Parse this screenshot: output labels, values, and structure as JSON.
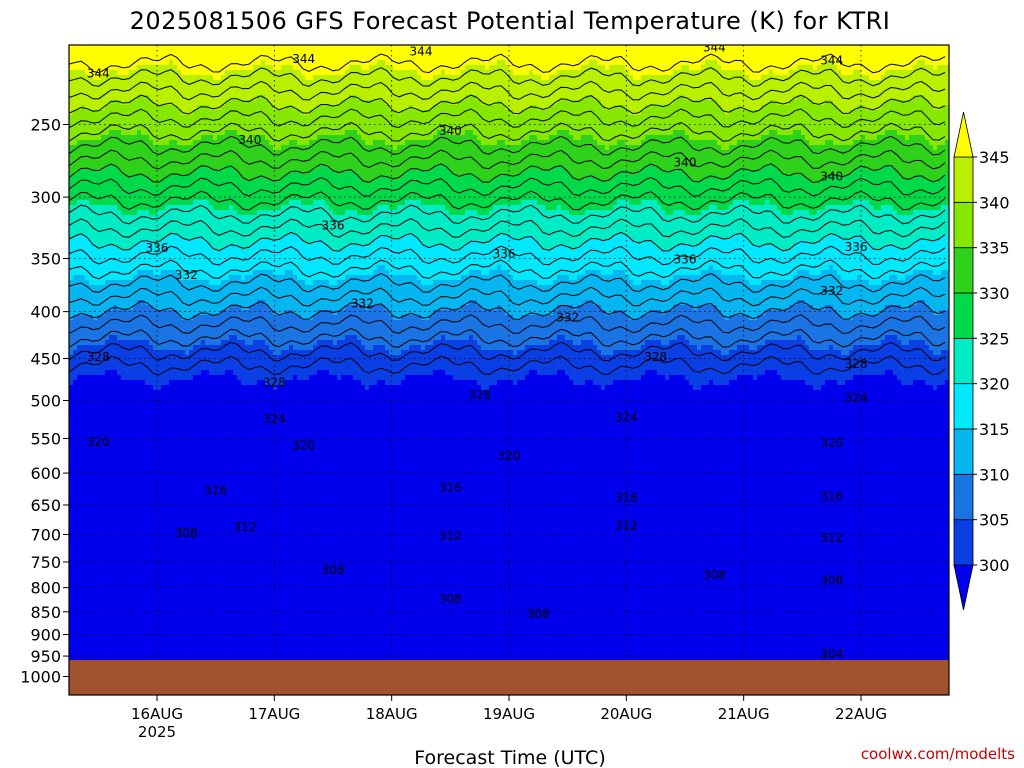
{
  "chart_data": {
    "type": "heatmap",
    "title": "2025081506 GFS Forecast Potential Temperature (K) for KTRI",
    "xlabel": "Forecast Time (UTC)",
    "ylabel": "",
    "y_scale": "log-pressure",
    "y_ticks": [
      250,
      300,
      350,
      400,
      450,
      500,
      550,
      600,
      650,
      700,
      750,
      800,
      850,
      900,
      950,
      1000
    ],
    "y_range": [
      200,
      1000
    ],
    "x_start": "2025-08-15T06Z",
    "x_end": "2025-08-22T18Z",
    "x_ticks": [
      {
        "label": "16AUG",
        "sub": "2025",
        "time": "2025-08-16T00Z"
      },
      {
        "label": "17AUG",
        "sub": "",
        "time": "2025-08-17T00Z"
      },
      {
        "label": "18AUG",
        "sub": "",
        "time": "2025-08-18T00Z"
      },
      {
        "label": "19AUG",
        "sub": "",
        "time": "2025-08-19T00Z"
      },
      {
        "label": "20AUG",
        "sub": "",
        "time": "2025-08-20T00Z"
      },
      {
        "label": "21AUG",
        "sub": "",
        "time": "2025-08-21T00Z"
      },
      {
        "label": "22AUG",
        "sub": "",
        "time": "2025-08-22T00Z"
      }
    ],
    "colorbar": {
      "levels": [
        300,
        305,
        310,
        315,
        320,
        325,
        330,
        335,
        340,
        345
      ],
      "colors": [
        "#0000ee",
        "#0a3fe6",
        "#1a74e3",
        "#05b6f0",
        "#00e8ff",
        "#00ecc4",
        "#00d94a",
        "#2fd21a",
        "#86e800",
        "#b8f000",
        "#ffff00"
      ],
      "extend": "both"
    },
    "terrain_color": "#a0522d",
    "grid": "dotted",
    "contour_interval": 2,
    "contour_labels": [
      {
        "value": "344",
        "x": "2025-08-15T12Z",
        "p": 220
      },
      {
        "value": "344",
        "x": "2025-08-17T06Z",
        "p": 212
      },
      {
        "value": "344",
        "x": "2025-08-18T06Z",
        "p": 208
      },
      {
        "value": "344",
        "x": "2025-08-20T18Z",
        "p": 206
      },
      {
        "value": "344",
        "x": "2025-08-21T18Z",
        "p": 213
      },
      {
        "value": "340",
        "x": "2025-08-16T19Z",
        "p": 260
      },
      {
        "value": "340",
        "x": "2025-08-18T12Z",
        "p": 254
      },
      {
        "value": "340",
        "x": "2025-08-20T12Z",
        "p": 275
      },
      {
        "value": "340",
        "x": "2025-08-21T18Z",
        "p": 285
      },
      {
        "value": "336",
        "x": "2025-08-17T12Z",
        "p": 322
      },
      {
        "value": "336",
        "x": "2025-08-16T00Z",
        "p": 341
      },
      {
        "value": "336",
        "x": "2025-08-18T23Z",
        "p": 346
      },
      {
        "value": "336",
        "x": "2025-08-20T12Z",
        "p": 351
      },
      {
        "value": "336",
        "x": "2025-08-21T23Z",
        "p": 340
      },
      {
        "value": "332",
        "x": "2025-08-16T06Z",
        "p": 365
      },
      {
        "value": "332",
        "x": "2025-08-17T18Z",
        "p": 392
      },
      {
        "value": "332",
        "x": "2025-08-19T12Z",
        "p": 406
      },
      {
        "value": "332",
        "x": "2025-08-21T18Z",
        "p": 380
      },
      {
        "value": "328",
        "x": "2025-08-15T12Z",
        "p": 448
      },
      {
        "value": "328",
        "x": "2025-08-17T00Z",
        "p": 478
      },
      {
        "value": "328",
        "x": "2025-08-18T18Z",
        "p": 493
      },
      {
        "value": "328",
        "x": "2025-08-20T06Z",
        "p": 448
      },
      {
        "value": "328",
        "x": "2025-08-21T23Z",
        "p": 456
      },
      {
        "value": "324",
        "x": "2025-08-17T00Z",
        "p": 524
      },
      {
        "value": "324",
        "x": "2025-08-20T00Z",
        "p": 522
      },
      {
        "value": "324",
        "x": "2025-08-21T23Z",
        "p": 497
      },
      {
        "value": "320",
        "x": "2025-08-15T12Z",
        "p": 555
      },
      {
        "value": "320",
        "x": "2025-08-17T06Z",
        "p": 560
      },
      {
        "value": "320",
        "x": "2025-08-19T00Z",
        "p": 575
      },
      {
        "value": "320",
        "x": "2025-08-21T18Z",
        "p": 556
      },
      {
        "value": "316",
        "x": "2025-08-16T12Z",
        "p": 627
      },
      {
        "value": "316",
        "x": "2025-08-18T12Z",
        "p": 622
      },
      {
        "value": "316",
        "x": "2025-08-20T00Z",
        "p": 638
      },
      {
        "value": "316",
        "x": "2025-08-21T18Z",
        "p": 636
      },
      {
        "value": "312",
        "x": "2025-08-16T18Z",
        "p": 687
      },
      {
        "value": "312",
        "x": "2025-08-18T12Z",
        "p": 703
      },
      {
        "value": "312",
        "x": "2025-08-20T00Z",
        "p": 685
      },
      {
        "value": "312",
        "x": "2025-08-21T18Z",
        "p": 706
      },
      {
        "value": "308",
        "x": "2025-08-16T06Z",
        "p": 697
      },
      {
        "value": "308",
        "x": "2025-08-17T12Z",
        "p": 765
      },
      {
        "value": "308",
        "x": "2025-08-18T12Z",
        "p": 823
      },
      {
        "value": "308",
        "x": "2025-08-19T06Z",
        "p": 855
      },
      {
        "value": "308",
        "x": "2025-08-20T18Z",
        "p": 775
      },
      {
        "value": "308",
        "x": "2025-08-21T18Z",
        "p": 786
      },
      {
        "value": "304",
        "x": "2025-08-21T18Z",
        "p": 945
      }
    ]
  },
  "credit": "coolwx.com/modelts"
}
